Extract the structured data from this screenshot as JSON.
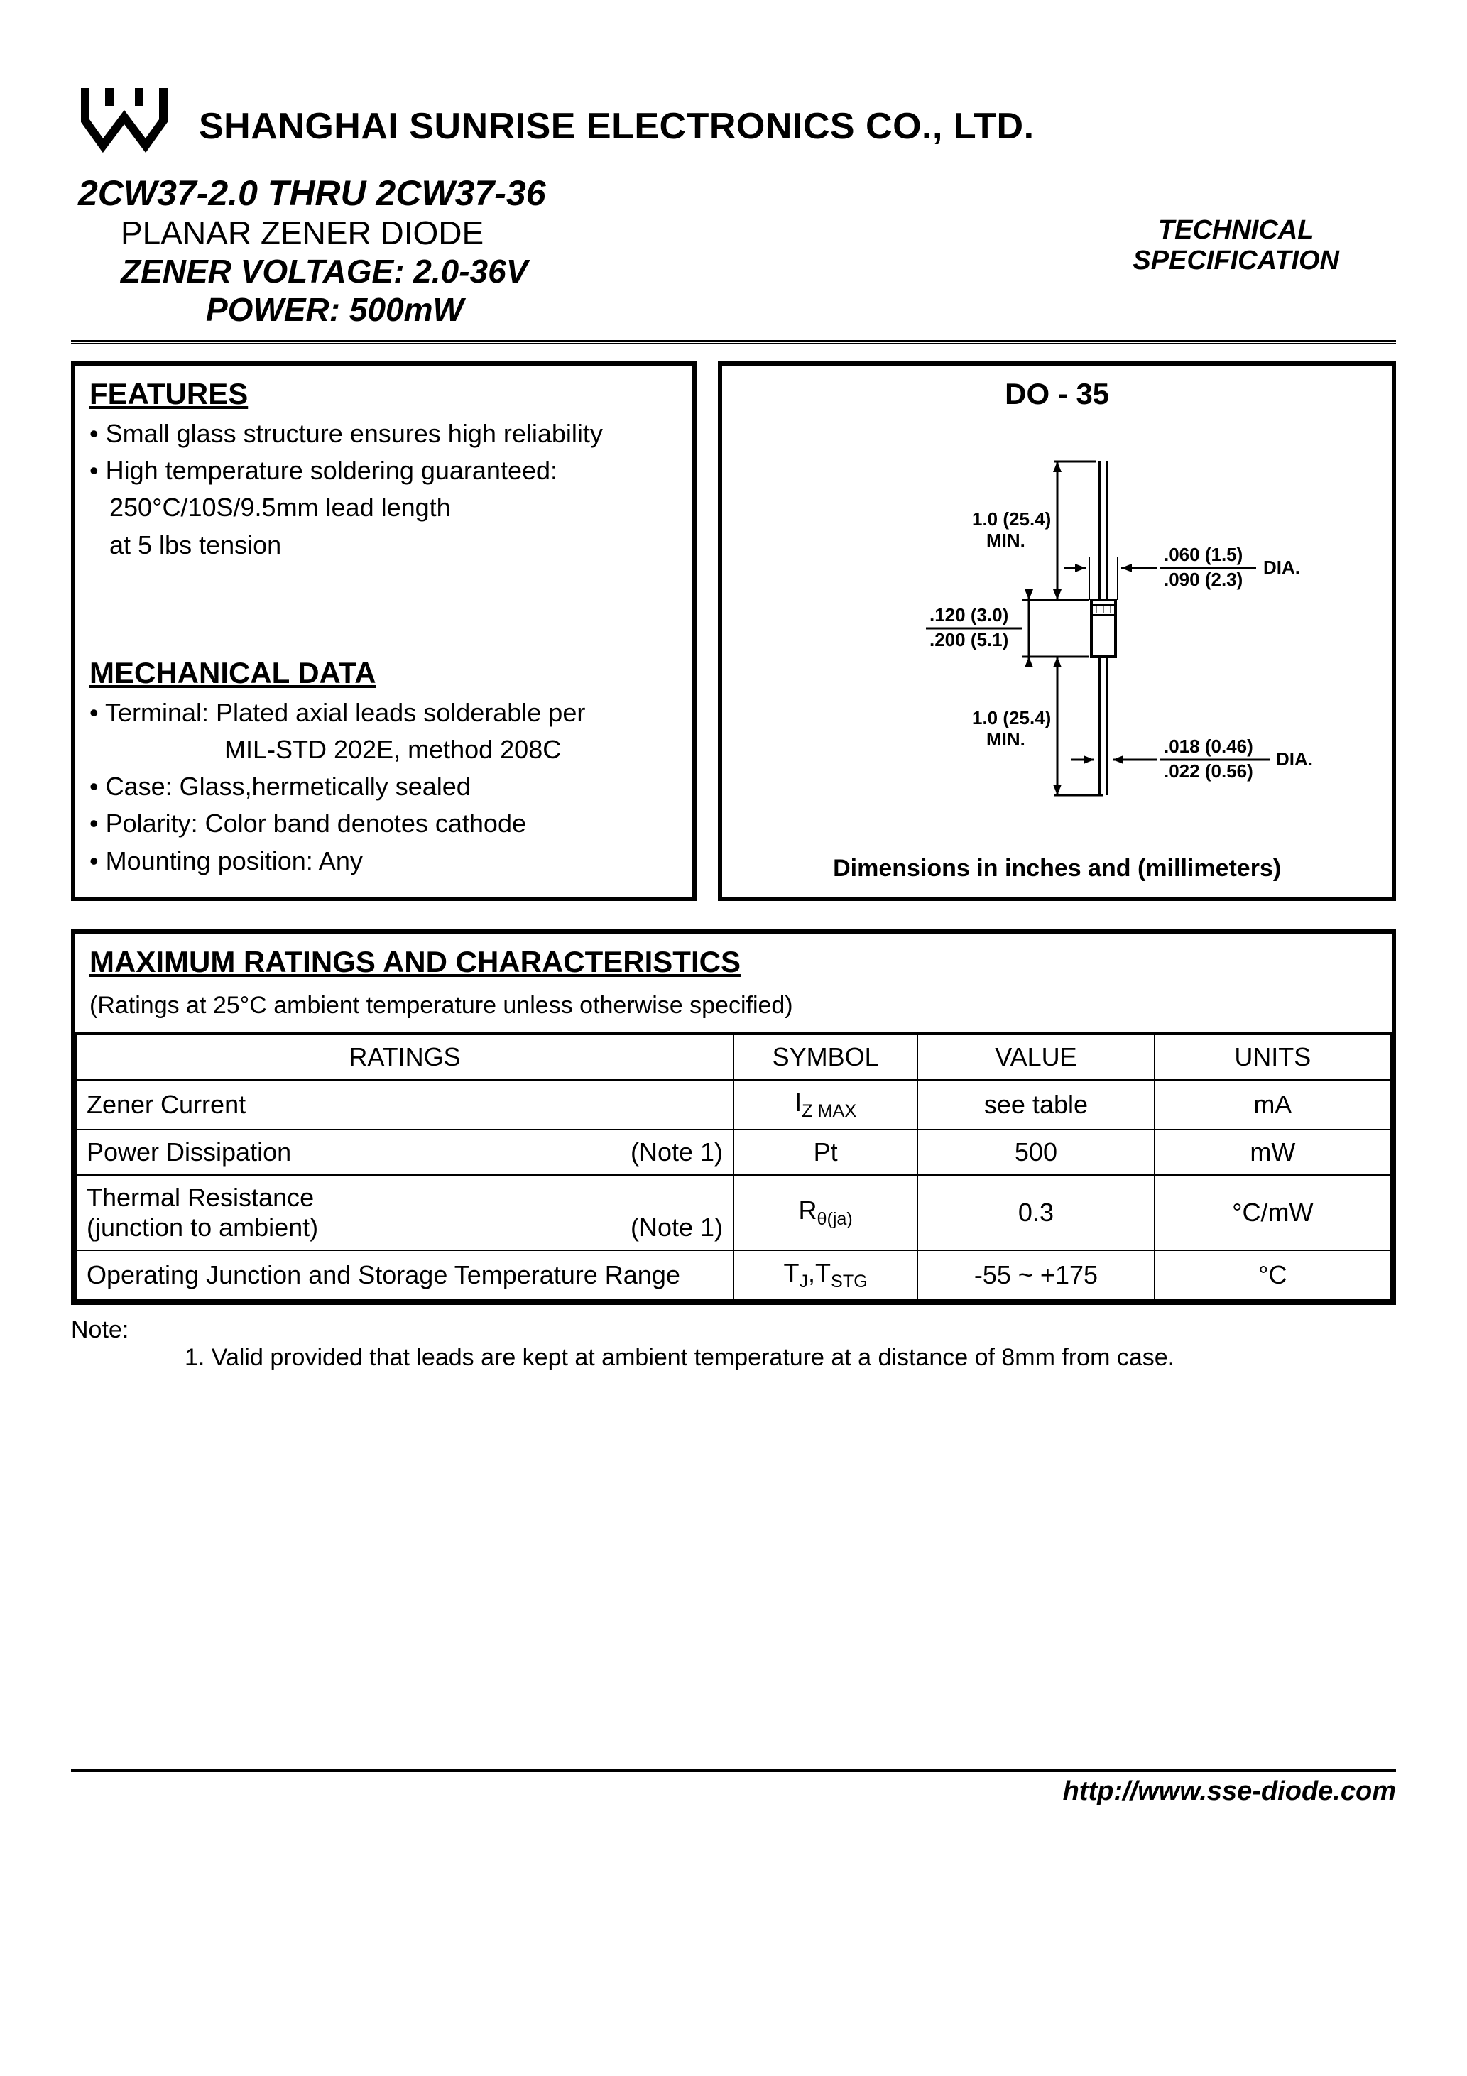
{
  "header": {
    "company": "SHANGHAI SUNRISE ELECTRONICS CO., LTD.",
    "part_range": "2CW37-2.0 THRU 2CW37-36",
    "subtitle1": "PLANAR ZENER DIODE",
    "subtitle2": "ZENER VOLTAGE: 2.0-36V",
    "subtitle3": "POWER: 500mW",
    "tech_line1": "TECHNICAL",
    "tech_line2": "SPECIFICATION"
  },
  "features": {
    "heading": "FEATURES",
    "items": [
      "Small glass structure ensures high reliability",
      "High temperature soldering guaranteed:"
    ],
    "sub_lines": [
      "250°C/10S/9.5mm lead length",
      "at 5 lbs tension"
    ]
  },
  "mechanical": {
    "heading": "MECHANICAL DATA",
    "items": [
      "Terminal: Plated axial leads solderable per",
      "Case: Glass,hermetically sealed",
      "Polarity: Color band denotes cathode",
      "Mounting position: Any"
    ],
    "terminal_sub": "MIL-STD 202E, method 208C"
  },
  "package": {
    "title": "DO - 35",
    "dim_note": "Dimensions in inches and (millimeters)",
    "labels": {
      "lead_len_top": "1.0 (25.4)",
      "min_top": "MIN.",
      "body_dia_top": ".060 (1.5)",
      "body_dia_bot": ".090 (2.3)",
      "dia1": "DIA.",
      "body_len_top": ".120 (3.0)",
      "body_len_bot": ".200 (5.1)",
      "lead_len_bot": "1.0 (25.4)",
      "min_bot": "MIN.",
      "lead_dia_top": ".018 (0.46)",
      "lead_dia_bot": ".022 (0.56)",
      "dia2": "DIA."
    }
  },
  "ratings": {
    "heading": "MAXIMUM RATINGS AND CHARACTERISTICS",
    "subheading": "(Ratings at 25°C ambient temperature unless otherwise specified)",
    "columns": [
      "RATINGS",
      "SYMBOL",
      "VALUE",
      "UNITS"
    ],
    "rows": [
      {
        "rating": "Zener Current",
        "note": "",
        "symbol_html": "I<span class='sub'>Z MAX</span>",
        "value": "see table",
        "unit": "mA"
      },
      {
        "rating": "Power Dissipation",
        "note": "(Note 1)",
        "symbol_html": "Pt",
        "value": "500",
        "unit": "mW"
      },
      {
        "rating": "Thermal Resistance<br>(junction to ambient)",
        "note": "(Note 1)",
        "symbol_html": "R<span class='sub'>θ(ja)</span>",
        "value": "0.3",
        "unit": "°C/mW"
      },
      {
        "rating": "Operating Junction and Storage Temperature Range",
        "note": "",
        "symbol_html": "T<span class='sub'>J</span>,T<span class='sub'>STG</span>",
        "value": "-55 ~ +175",
        "unit": "°C"
      }
    ]
  },
  "notes": {
    "label": "Note:",
    "line1": "1. Valid provided that leads are kept at ambient temperature at a distance of 8mm from case."
  },
  "footer": {
    "url": "http://www.sse-diode.com"
  },
  "colors": {
    "text": "#000000",
    "bg": "#ffffff",
    "border": "#000000"
  }
}
